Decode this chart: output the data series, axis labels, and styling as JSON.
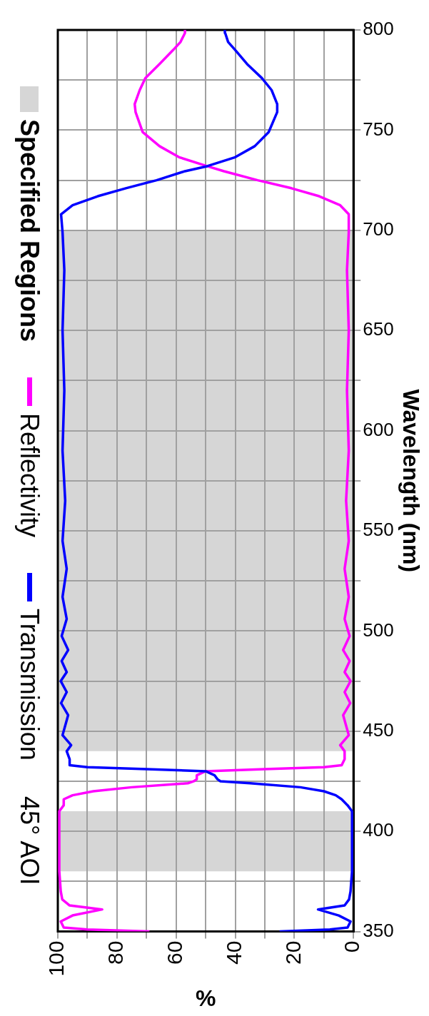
{
  "chart_data": {
    "type": "line",
    "legend_title": "45° AOI",
    "xlabel": "%",
    "ylabel": "Wavelength (nm)",
    "xlim": [
      100,
      0
    ],
    "ylim": [
      350,
      800
    ],
    "xticks": [
      100,
      {
        "value": 90,
        "label": null
      },
      80,
      {
        "value": 70,
        "label": null
      },
      60,
      {
        "value": 50,
        "label": null
      },
      40,
      {
        "value": 30,
        "label": null
      },
      20,
      {
        "value": 10,
        "label": null
      },
      0
    ],
    "yticks": [
      350,
      {
        "value": 375,
        "label": null
      },
      400,
      {
        "value": 425,
        "label": null
      },
      450,
      {
        "value": 475,
        "label": null
      },
      500,
      {
        "value": 525,
        "label": null
      },
      550,
      {
        "value": 575,
        "label": null
      },
      600,
      {
        "value": 625,
        "label": null
      },
      650,
      {
        "value": 675,
        "label": null
      },
      700,
      {
        "value": 725,
        "label": null
      },
      750,
      {
        "value": 775,
        "label": null
      },
      800
    ],
    "grid": true,
    "legend": "left",
    "marker": "none",
    "line_style": "solid",
    "series": [
      {
        "name": "Transmission",
        "color": "#0000ff",
        "x": [
          25,
          8,
          2,
          1,
          5,
          12,
          3,
          1.5,
          1,
          0.5,
          0.5,
          2,
          4,
          6,
          10,
          18,
          35,
          45,
          46,
          47,
          50,
          70,
          90,
          96,
          96,
          97,
          95.5,
          98.4,
          96.5,
          98.9,
          97,
          99,
          97,
          98.7,
          96.5,
          98.7,
          97,
          98.4,
          97,
          98.4,
          97.5,
          98.4,
          97.8,
          98.4,
          97.8,
          98.4,
          98.9,
          95,
          86.5,
          77,
          66.6,
          57,
          49.5,
          40,
          33.4,
          28.7,
          25.8,
          25.8,
          27.7,
          31,
          36,
          40,
          42.4,
          43.4,
          43.5
        ],
        "values": [
          350,
          351,
          352,
          355,
          358,
          361,
          363,
          366,
          370,
          380,
          410,
          413,
          416,
          418,
          420,
          422,
          424,
          425,
          426,
          428,
          430,
          431,
          432,
          433,
          436,
          440,
          443,
          448,
          458,
          464,
          469.5,
          475,
          479.5,
          485,
          490.5,
          497.5,
          506,
          517,
          531,
          545,
          565,
          590,
          620,
          650,
          680,
          699,
          708,
          712.5,
          717,
          721,
          725,
          729.5,
          732,
          736.5,
          742,
          749,
          759,
          763,
          770,
          776,
          783,
          790,
          794,
          798.5,
          800
        ]
      },
      {
        "name": "Reflectivity",
        "color": "#ff00ff",
        "x": [
          69,
          90,
          98,
          99,
          95,
          85,
          96,
          98.5,
          99,
          99.5,
          99.5,
          98,
          98,
          95,
          88,
          75,
          56,
          54,
          53,
          53,
          50,
          30,
          10,
          4,
          3,
          3,
          4.5,
          1.6,
          3.5,
          1.1,
          3,
          1,
          3,
          1.3,
          3.5,
          1.3,
          3,
          1.6,
          3,
          1.6,
          2.5,
          1.6,
          2.2,
          1.6,
          2.2,
          1.6,
          1.6,
          4.5,
          11.6,
          21,
          32.4,
          43.8,
          49.5,
          59,
          65.6,
          71.3,
          73.7,
          74,
          72.3,
          70.4,
          65.6,
          61,
          58.5,
          57,
          57
        ],
        "values": [
          350,
          351,
          352,
          355,
          358,
          361,
          363,
          366,
          370,
          380,
          410,
          413,
          416,
          418,
          420,
          422,
          424,
          425,
          426,
          428,
          430,
          431,
          432,
          433,
          436,
          440,
          443,
          448,
          458,
          464,
          469.5,
          475,
          479.5,
          485,
          490.5,
          497.5,
          506,
          517,
          531,
          545,
          565,
          590,
          620,
          650,
          680,
          699,
          708,
          712.5,
          717,
          721,
          725,
          729.5,
          732,
          736.5,
          742,
          749,
          759,
          763,
          770,
          776,
          783,
          790,
          794,
          798.5,
          800
        ]
      }
    ],
    "bands": [
      {
        "axis": "y",
        "from": 380,
        "to": 410,
        "color": "#d6d6d6",
        "label": "Specified Regions"
      },
      {
        "axis": "y",
        "from": 440,
        "to": 700,
        "color": "#d6d6d6"
      }
    ]
  }
}
